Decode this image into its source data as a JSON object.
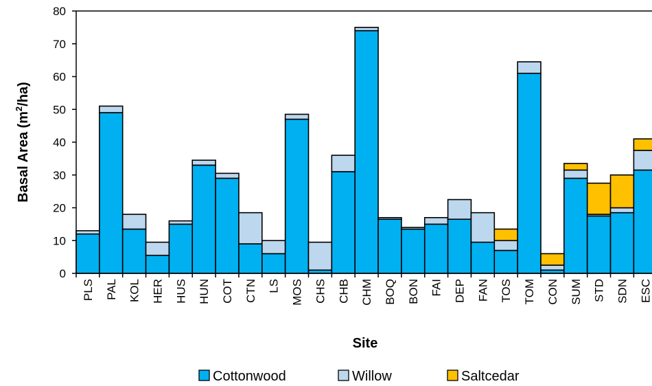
{
  "chart_data": {
    "type": "bar",
    "stacked": true,
    "title": "",
    "xlabel": "Site",
    "ylabel_main": "Basal Area (m",
    "ylabel_sup": "2",
    "ylabel_tail": "/ha)",
    "ylim": [
      0,
      80
    ],
    "yticks": [
      0,
      10,
      20,
      30,
      40,
      50,
      60,
      70,
      80
    ],
    "grid": false,
    "legend_position": "bottom",
    "categories": [
      "PLS",
      "PAL",
      "KOL",
      "HER",
      "HUS",
      "HUN",
      "COT",
      "CTN",
      "LS",
      "MOS",
      "CHS",
      "CHB",
      "CHM",
      "BOQ",
      "BON",
      "FAI",
      "DEP",
      "FAN",
      "TOS",
      "TOM",
      "CON",
      "SUM",
      "STD",
      "SDN",
      "ESC"
    ],
    "series": [
      {
        "name": "Cottonwood",
        "color": "#00b0f0",
        "values": [
          12,
          49,
          13.5,
          5.5,
          15,
          33,
          29,
          9,
          6,
          47,
          1,
          31,
          74,
          16.5,
          13.5,
          15,
          16.5,
          9.5,
          7,
          61,
          1,
          29,
          17.5,
          18.5,
          31.5
        ]
      },
      {
        "name": "Willow",
        "color": "#bdd7ee",
        "values": [
          1,
          2,
          4.5,
          4,
          1,
          1.5,
          1.5,
          9.5,
          4,
          1.5,
          8.5,
          5,
          1,
          0.5,
          0.5,
          2,
          6,
          9,
          3,
          3.5,
          1.5,
          2.5,
          0.5,
          1.5,
          6
        ]
      },
      {
        "name": "Saltcedar",
        "color": "#ffc000",
        "values": [
          0,
          0,
          0,
          0,
          0,
          0,
          0,
          0,
          0,
          0,
          0,
          0,
          0,
          0,
          0,
          0,
          0,
          0,
          3.5,
          0,
          3.5,
          2,
          9.5,
          10,
          3.5
        ]
      }
    ]
  }
}
